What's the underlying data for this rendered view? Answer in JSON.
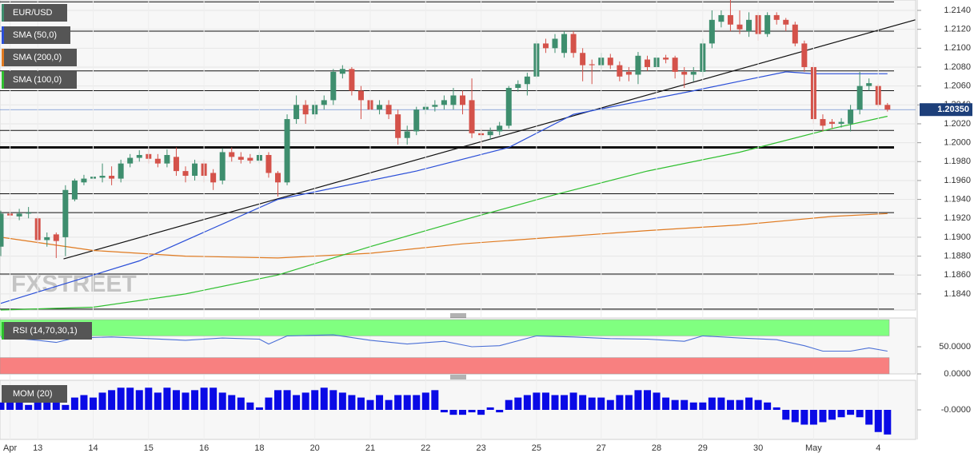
{
  "chart_data": [
    {
      "type": "candlestick",
      "title": "EUR/USD",
      "up_color": "#3e8e6e",
      "down_color": "#d4524a",
      "categories": [
        null,
        "Apr",
        null,
        null,
        "13",
        null,
        null,
        null,
        null,
        null,
        "14",
        null,
        null,
        null,
        null,
        null,
        "15",
        null,
        null,
        null,
        null,
        null,
        "16",
        null,
        null,
        null,
        null,
        null,
        "18",
        null,
        null,
        null,
        null,
        null,
        "20",
        null,
        null,
        null,
        null,
        null,
        "21",
        null,
        null,
        null,
        null,
        null,
        "22",
        null,
        null,
        null,
        null,
        null,
        "23",
        null,
        null,
        null,
        null,
        null,
        "25",
        null,
        null,
        null,
        null,
        null,
        null,
        "27",
        null,
        null,
        null,
        null,
        null,
        "28",
        null,
        null,
        null,
        null,
        "29",
        null,
        null,
        null,
        null,
        null,
        "30",
        null,
        null,
        null,
        null,
        null,
        "May",
        null,
        null,
        null,
        null,
        null,
        null,
        "4",
        null
      ],
      "open": [
        1.189,
        1.1925,
        1.1922,
        1.1925,
        1.192,
        1.1897,
        1.1903,
        1.19,
        1.194,
        1.1958,
        1.1962,
        1.1963,
        1.1965,
        1.1962,
        1.1978,
        1.1984,
        1.1988,
        1.1983,
        1.1978,
        1.1985,
        1.197,
        1.1965,
        1.1978,
        1.1968,
        1.196,
        1.199,
        1.1985,
        1.1984,
        1.1981,
        1.1987,
        1.1968,
        1.1958,
        1.2025,
        1.204,
        1.203,
        1.204,
        1.2045,
        1.2073,
        1.2078,
        1.2055,
        1.2045,
        1.2035,
        1.204,
        1.203,
        1.2005,
        1.2012,
        1.2035,
        1.2038,
        1.204,
        1.204,
        1.205,
        1.2045,
        1.201,
        1.2008,
        1.2012,
        1.2018,
        1.2058,
        1.2062,
        1.207,
        1.2105,
        1.21,
        1.2095,
        1.2115,
        1.2095,
        1.2083,
        1.2082,
        1.209,
        1.2082,
        1.2075,
        1.2072,
        1.2088,
        1.208,
        1.209,
        1.209,
        1.2075,
        1.2072,
        1.2075,
        1.2105,
        1.2128,
        1.2135,
        1.2125,
        1.2118,
        1.2135,
        1.2115,
        1.2135,
        1.213,
        1.2125,
        1.2105,
        1.208,
        1.2025,
        1.2022,
        1.202,
        1.202,
        1.2035,
        1.206,
        1.206,
        1.204
      ],
      "high": [
        1.1928,
        1.193,
        1.193,
        1.1932,
        1.1922,
        1.1905,
        1.1905,
        1.1955,
        1.1962,
        1.1966,
        1.197,
        1.1978,
        1.1975,
        1.1982,
        1.1988,
        1.1992,
        1.1994,
        1.1988,
        1.1993,
        1.1995,
        1.1975,
        1.1982,
        1.1982,
        1.1972,
        1.1994,
        1.1995,
        1.199,
        1.1988,
        1.199,
        1.199,
        1.197,
        1.203,
        1.205,
        1.2045,
        1.2044,
        1.205,
        1.2078,
        1.2082,
        1.208,
        1.206,
        1.2048,
        1.2045,
        1.2045,
        1.2035,
        1.2018,
        1.2038,
        1.2042,
        1.2045,
        1.205,
        1.2058,
        1.2055,
        1.2068,
        1.2015,
        1.2016,
        1.2022,
        1.206,
        1.2066,
        1.2074,
        1.2108,
        1.211,
        1.2115,
        1.2118,
        1.2118,
        1.21,
        1.2088,
        1.2095,
        1.2094,
        1.2086,
        1.208,
        1.2096,
        1.2092,
        1.2093,
        1.2093,
        1.2092,
        1.208,
        1.208,
        1.211,
        1.214,
        1.214,
        1.2152,
        1.214,
        1.2138,
        1.2138,
        1.2138,
        1.2138,
        1.2132,
        1.2128,
        1.2108,
        1.2085,
        1.203,
        1.2025,
        1.2026,
        1.204,
        1.2075,
        1.2068,
        1.2062,
        1.2042
      ],
      "low": [
        1.188,
        1.1918,
        1.1918,
        1.192,
        1.1893,
        1.189,
        1.1878,
        1.188,
        1.1938,
        1.1955,
        1.1958,
        1.1958,
        1.1955,
        1.1958,
        1.1974,
        1.198,
        1.1978,
        1.1974,
        1.1974,
        1.1965,
        1.1958,
        1.196,
        1.1958,
        1.195,
        1.1956,
        1.198,
        1.1978,
        1.1978,
        1.1978,
        1.1963,
        1.1943,
        1.1955,
        1.202,
        1.202,
        1.2025,
        1.2035,
        1.204,
        1.2068,
        1.205,
        1.2025,
        1.2025,
        1.203,
        1.2025,
        1.1998,
        1.1998,
        1.2008,
        1.203,
        1.2033,
        1.2035,
        1.2035,
        1.203,
        1.2005,
        1.1995,
        1.2003,
        1.2008,
        1.2015,
        1.2054,
        1.205,
        1.2068,
        1.2095,
        1.2095,
        1.209,
        1.209,
        1.2065,
        1.2062,
        1.2078,
        1.2078,
        1.2065,
        1.2065,
        1.2062,
        1.2076,
        1.2076,
        1.2084,
        1.2068,
        1.2058,
        1.2065,
        1.207,
        1.21,
        1.2122,
        1.2118,
        1.2115,
        1.2112,
        1.2108,
        1.2112,
        1.2125,
        1.2118,
        1.2102,
        1.2075,
        1.202,
        1.2012,
        1.2015,
        1.2016,
        1.2012,
        1.203,
        1.2055,
        1.2038,
        1.2033
      ],
      "close": [
        1.1925,
        1.1923,
        1.1925,
        1.1926,
        1.1897,
        1.19,
        1.1896,
        1.195,
        1.196,
        1.1962,
        1.1964,
        1.1965,
        1.1962,
        1.1978,
        1.1984,
        1.1987,
        1.1983,
        1.1978,
        1.1987,
        1.197,
        1.1965,
        1.1978,
        1.1965,
        1.1958,
        1.199,
        1.1985,
        1.1982,
        1.1981,
        1.1987,
        1.1968,
        1.1958,
        1.2025,
        1.204,
        1.203,
        1.204,
        1.2045,
        1.2075,
        1.2078,
        1.2055,
        1.2045,
        1.2035,
        1.204,
        1.203,
        1.2005,
        1.2012,
        1.2035,
        1.2038,
        1.204,
        1.2045,
        1.205,
        1.204,
        1.201,
        1.2008,
        1.2012,
        1.2018,
        1.2058,
        1.2062,
        1.207,
        1.2105,
        1.21,
        1.211,
        1.2115,
        1.2095,
        1.2082,
        1.2082,
        1.209,
        1.2082,
        1.207,
        1.2072,
        1.2092,
        1.208,
        1.209,
        1.2088,
        1.2075,
        1.2072,
        1.2075,
        1.2105,
        1.213,
        1.2135,
        1.2125,
        1.212,
        1.213,
        1.2115,
        1.2135,
        1.213,
        1.2125,
        1.2105,
        1.208,
        1.2025,
        1.2018,
        1.202,
        1.2022,
        1.2035,
        1.206,
        1.2063,
        1.204,
        1.2035
      ],
      "ylim": [
        1.1823,
        1.2151
      ],
      "yticks": [
        {
          "value": 1.184,
          "label": "1.1840"
        },
        {
          "value": 1.186,
          "label": "1.1860"
        },
        {
          "value": 1.188,
          "label": "1.1880"
        },
        {
          "value": 1.19,
          "label": "1.1900"
        },
        {
          "value": 1.192,
          "label": "1.1920"
        },
        {
          "value": 1.194,
          "label": "1.1940"
        },
        {
          "value": 1.196,
          "label": "1.1960"
        },
        {
          "value": 1.198,
          "label": "1.1980"
        },
        {
          "value": 1.2,
          "label": "1.2000"
        },
        {
          "value": 1.202,
          "label": "1.2020"
        },
        {
          "value": 1.204,
          "label": "1.2040"
        },
        {
          "value": 1.206,
          "label": "1.2060"
        },
        {
          "value": 1.208,
          "label": "1.2080"
        },
        {
          "value": 1.21,
          "label": "1.2100"
        },
        {
          "value": 1.212,
          "label": "1.2120"
        },
        {
          "value": 1.214,
          "label": "1.2140"
        }
      ],
      "grid": true,
      "series": [
        {
          "name": "SMA (50,0)",
          "color": "#2b4fd8",
          "x": [
            0,
            15,
            30,
            45,
            55,
            62,
            75,
            80,
            85,
            88,
            96
          ],
          "values": [
            1.183,
            1.1875,
            1.194,
            1.197,
            1.1995,
            1.203,
            1.2055,
            1.2065,
            1.2075,
            1.2073,
            1.2073
          ]
        },
        {
          "name": "SMA (200,0)",
          "color": "#e07a20",
          "x": [
            0,
            10,
            20,
            30,
            40,
            50,
            60,
            70,
            80,
            90,
            96
          ],
          "values": [
            1.19,
            1.1886,
            1.188,
            1.1878,
            1.1883,
            1.1893,
            1.19,
            1.1907,
            1.1913,
            1.1922,
            1.1925
          ]
        },
        {
          "name": "SMA (100,0)",
          "color": "#2fbf2f",
          "x": [
            0,
            10,
            20,
            30,
            40,
            50,
            60,
            70,
            80,
            90,
            96
          ],
          "values": [
            1.1823,
            1.1826,
            1.184,
            1.186,
            1.189,
            1.1918,
            1.1945,
            1.197,
            1.199,
            1.2015,
            1.2028
          ]
        }
      ],
      "trendline": {
        "color": "#111111",
        "x": [
          6.8,
          99
        ],
        "values": [
          1.1877,
          1.213
        ]
      },
      "levels": [
        {
          "value": 1.2149
        },
        {
          "value": 1.2118
        },
        {
          "value": 1.2076
        },
        {
          "value": 1.2055
        },
        {
          "value": 1.2013
        },
        {
          "value": 1.1995,
          "thick": true
        },
        {
          "value": 1.1946
        },
        {
          "value": 1.1926
        },
        {
          "value": 1.1861
        },
        {
          "value": 1.1824
        }
      ],
      "last_price": {
        "value": 1.2035,
        "label": "1.20350",
        "color": "#1d3f7a"
      },
      "watermark": "FXSTREET"
    },
    {
      "type": "line",
      "title": "RSI (14,70,30,1)",
      "color": "#4a6fd6",
      "x": [
        0,
        4,
        6,
        8,
        12,
        16,
        20,
        24,
        28,
        29,
        31,
        36,
        40,
        44,
        48,
        51,
        54,
        58,
        62,
        66,
        70,
        74,
        76,
        80,
        84,
        87,
        89,
        92,
        94,
        96
      ],
      "values": [
        68,
        62,
        58,
        66,
        68,
        65,
        62,
        66,
        64,
        55,
        70,
        72,
        62,
        55,
        60,
        50,
        52,
        70,
        68,
        65,
        64,
        60,
        70,
        66,
        63,
        52,
        42,
        42,
        48,
        42
      ],
      "ylim": [
        0,
        103
      ],
      "yticks": [
        {
          "value": 50,
          "label": "50.0000"
        },
        {
          "value": 0,
          "label": "0.0000"
        }
      ],
      "overbought": 70,
      "oversold": 30,
      "overbought_color": "#80ff80",
      "oversold_color": "#f88080"
    },
    {
      "type": "bar",
      "title": "MOM (20)",
      "color": "#0a0ae6",
      "values": [
        0.003,
        0.004,
        0.003,
        0.002,
        0.004,
        0.003,
        0.003,
        0.002,
        0.005,
        0.006,
        0.005,
        0.007,
        0.008,
        0.009,
        0.009,
        0.008,
        0.009,
        0.007,
        0.009,
        0.008,
        0.007,
        0.008,
        0.009,
        0.009,
        0.007,
        0.006,
        0.005,
        0.003,
        0.001,
        0.005,
        0.008,
        0.008,
        0.006,
        0.007,
        0.008,
        0.009,
        0.008,
        0.007,
        0.006,
        0.005,
        0.004,
        0.006,
        0.004,
        0.006,
        0.006,
        0.006,
        0.007,
        0.008,
        -0.001,
        -0.002,
        -0.002,
        -0.001,
        -0.002,
        0.001,
        -0.001,
        0.004,
        0.005,
        0.006,
        0.007,
        0.007,
        0.006,
        0.006,
        0.007,
        0.006,
        0.005,
        0.005,
        0.004,
        0.006,
        0.006,
        0.008,
        0.008,
        0.007,
        0.005,
        0.004,
        0.004,
        0.003,
        0.003,
        0.005,
        0.005,
        0.004,
        0.004,
        0.005,
        0.004,
        0.003,
        0.001,
        -0.004,
        -0.005,
        -0.006,
        -0.006,
        -0.005,
        -0.004,
        -0.003,
        -0.002,
        -0.003,
        -0.006,
        -0.009,
        -0.01
      ],
      "ylim": [
        -0.012,
        0.012
      ],
      "yticks": [
        {
          "value": 0,
          "label": "-0.0000"
        }
      ]
    }
  ]
}
